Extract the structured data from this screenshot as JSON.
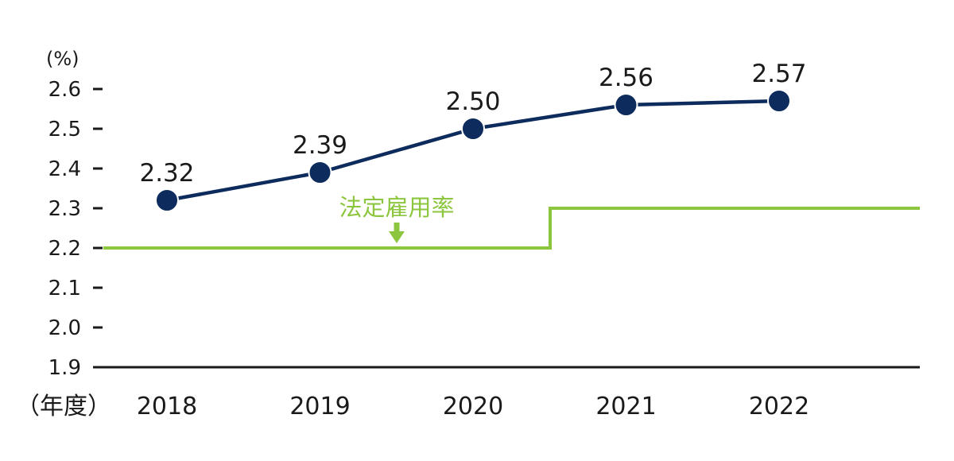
{
  "chart_data": {
    "type": "line",
    "y_unit": "(%)",
    "x_unit": "（年度）",
    "categories": [
      "2018",
      "2019",
      "2020",
      "2021",
      "2022"
    ],
    "series": [
      {
        "values": [
          2.32,
          2.39,
          2.5,
          2.56,
          2.57
        ],
        "labels": [
          "2.32",
          "2.39",
          "2.50",
          "2.56",
          "2.57"
        ],
        "color": "#0d2b5c",
        "marker": "circle"
      }
    ],
    "statutory_rate": {
      "name": "法定雇用率",
      "color": "#8cc63f",
      "segments": [
        {
          "from": "2018",
          "to": "2020",
          "value": 2.2
        },
        {
          "from": "2021",
          "to": "2022",
          "value": 2.3
        }
      ]
    },
    "ylim": [
      1.9,
      2.6
    ],
    "yticks": [
      "1.9",
      "2.0",
      "2.1",
      "2.2",
      "2.3",
      "2.4",
      "2.5",
      "2.6"
    ],
    "grid": false,
    "legend": "none"
  }
}
